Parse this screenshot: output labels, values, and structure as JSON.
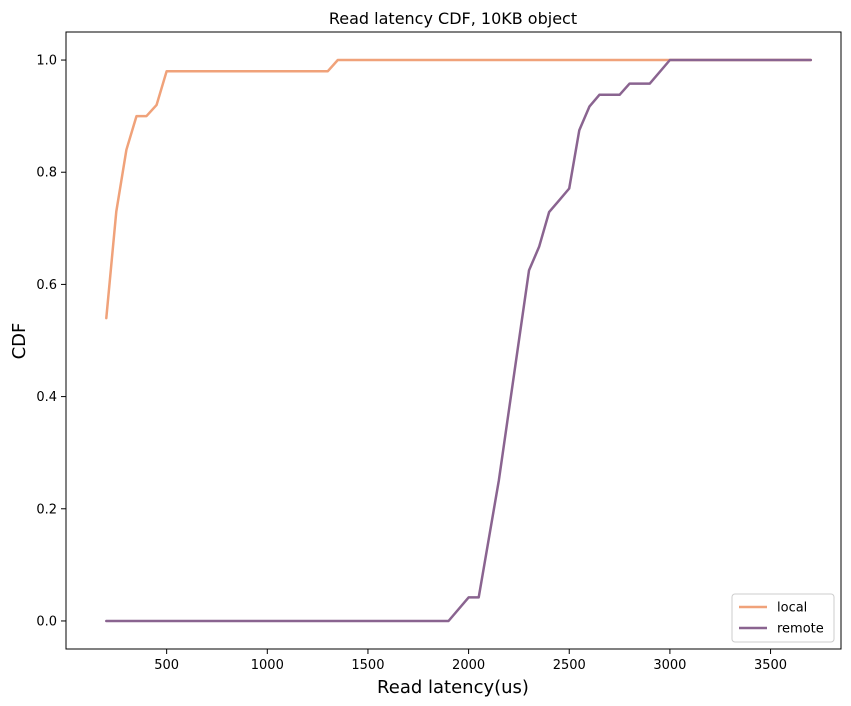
{
  "chart_data": {
    "type": "line",
    "title": "Read latency CDF, 10KB object",
    "xlabel": "Read latency(us)",
    "ylabel": "CDF",
    "xlim": [
      0,
      3850
    ],
    "ylim": [
      -0.05,
      1.05
    ],
    "xticks": [
      500,
      1000,
      1500,
      2000,
      2500,
      3000,
      3500
    ],
    "yticks": [
      0.0,
      0.2,
      0.4,
      0.6,
      0.8,
      1.0
    ],
    "xtick_labels": [
      "500",
      "1000",
      "1500",
      "2000",
      "2500",
      "3000",
      "3500"
    ],
    "ytick_labels": [
      "0.0",
      "0.2",
      "0.4",
      "0.6",
      "0.8",
      "1.0"
    ],
    "grid": false,
    "legend_position": "bottom-right",
    "series": [
      {
        "name": "local",
        "color": "#f0a27a",
        "x": [
          200,
          250,
          300,
          350,
          400,
          450,
          500,
          550,
          600,
          1000,
          1300,
          1350,
          1400,
          2000,
          2500,
          3000,
          3700
        ],
        "y": [
          0.54,
          0.73,
          0.84,
          0.9,
          0.9,
          0.92,
          0.98,
          0.98,
          0.98,
          0.98,
          0.98,
          1.0,
          1.0,
          1.0,
          1.0,
          1.0,
          1.0
        ]
      },
      {
        "name": "remote",
        "color": "#8a6490",
        "x": [
          200,
          1000,
          1900,
          2000,
          2050,
          2150,
          2300,
          2350,
          2400,
          2450,
          2500,
          2550,
          2600,
          2650,
          2750,
          2800,
          2900,
          3000,
          3700
        ],
        "y": [
          0.0,
          0.0,
          0.0,
          0.042,
          0.042,
          0.25,
          0.625,
          0.667,
          0.729,
          0.75,
          0.771,
          0.875,
          0.917,
          0.938,
          0.938,
          0.958,
          0.958,
          1.0,
          1.0
        ]
      }
    ]
  }
}
